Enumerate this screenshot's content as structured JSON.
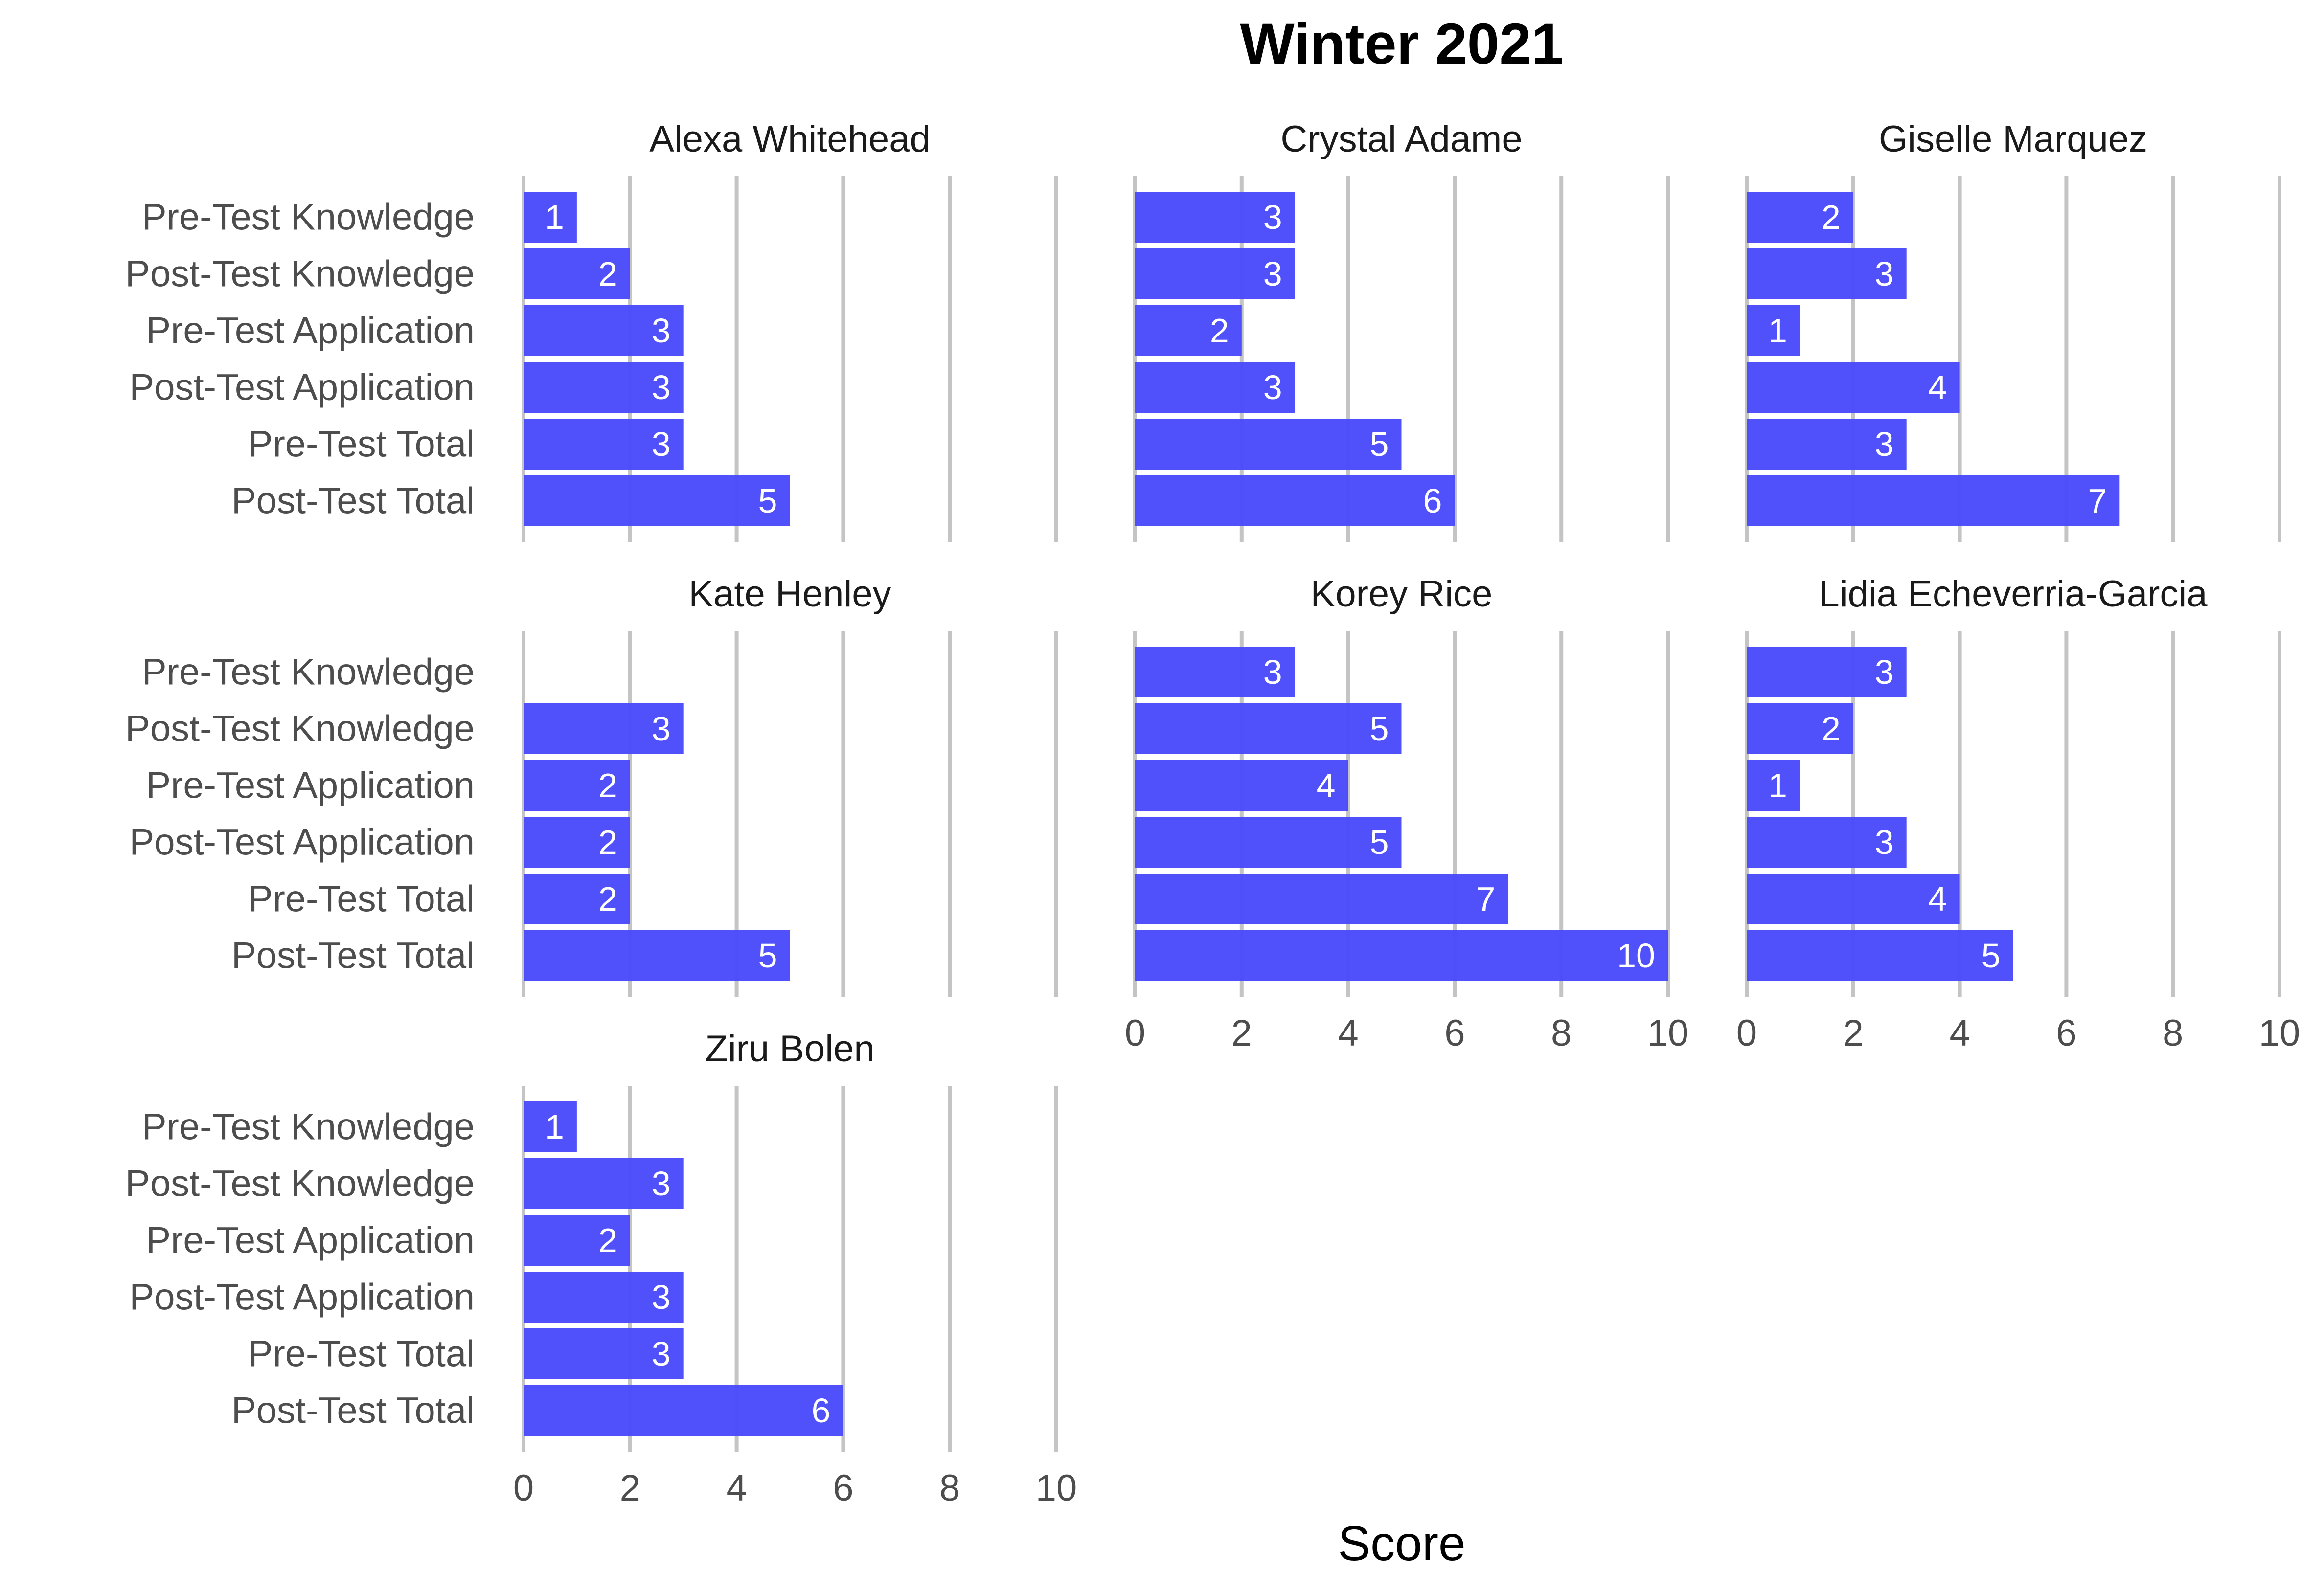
{
  "chart_data": {
    "type": "bar",
    "orientation": "horizontal",
    "title": "Winter 2021",
    "xlabel": "Score",
    "ylabel": "",
    "xlim": [
      0,
      10
    ],
    "x_ticks": [
      "0",
      "2",
      "4",
      "6",
      "8",
      "10"
    ],
    "grid": true,
    "bar_color": "#4B4BFB",
    "categories": [
      "Pre-Test Knowledge",
      "Post-Test Knowledge",
      "Pre-Test Application",
      "Post-Test Application",
      "Pre-Test Total",
      "Post-Test Total"
    ],
    "panels": [
      {
        "name": "Alexa Whitehead",
        "values": [
          1,
          2,
          3,
          3,
          3,
          5
        ]
      },
      {
        "name": "Crystal Adame",
        "values": [
          3,
          3,
          2,
          3,
          5,
          6
        ]
      },
      {
        "name": "Giselle Marquez",
        "values": [
          2,
          3,
          1,
          4,
          3,
          7
        ]
      },
      {
        "name": "Kate Henley",
        "values": [
          null,
          3,
          2,
          2,
          2,
          5
        ]
      },
      {
        "name": "Korey Rice",
        "values": [
          3,
          5,
          4,
          5,
          7,
          10
        ]
      },
      {
        "name": "Lidia Echeverria-Garcia",
        "values": [
          3,
          2,
          1,
          3,
          4,
          5
        ]
      },
      {
        "name": "Ziru Bolen",
        "values": [
          1,
          3,
          2,
          3,
          3,
          6
        ]
      }
    ]
  }
}
